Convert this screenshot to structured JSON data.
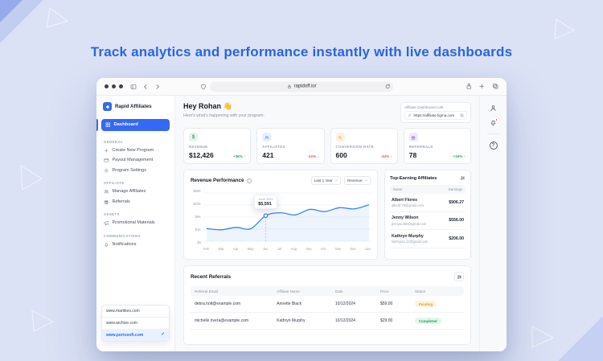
{
  "background": {
    "headline": "Track analytics and performance instantly with live dashboards"
  },
  "browser": {
    "url": "rapidoff.io/"
  },
  "sidebar": {
    "brand": "Rapid Affiliates",
    "active": "Dashboard",
    "sections": [
      {
        "label": "GENERAL",
        "items": [
          {
            "label": "Create New Program",
            "icon": "plus-icon"
          },
          {
            "label": "Payout Management",
            "icon": "credit-card-icon"
          },
          {
            "label": "Program Settings",
            "icon": "gear-icon"
          }
        ]
      },
      {
        "label": "AFFILIATE",
        "items": [
          {
            "label": "Manage Affiliates",
            "icon": "users-icon"
          },
          {
            "label": "Referrals",
            "icon": "gift-icon"
          }
        ]
      },
      {
        "label": "ASSETS",
        "items": [
          {
            "label": "Promotional Materials",
            "icon": "megaphone-icon"
          }
        ]
      },
      {
        "label": "COMMUNICATIONS",
        "items": [
          {
            "label": "Notifications",
            "icon": "bell-icon"
          }
        ]
      }
    ],
    "domains": {
      "options": [
        "www.martikes.com",
        "www.archive.com",
        "www.poriosoft.com"
      ],
      "selected_index": 2
    }
  },
  "header": {
    "greeting": "Hey Rohan 👋",
    "subtitle": "Here's what's happening with your program.",
    "link_card": {
      "label": "Affiliate Dashboard Link",
      "url": "https://affiliate.figma.com"
    }
  },
  "stats": [
    {
      "label": "REVENUE",
      "value": "$12,426",
      "delta": "+36%",
      "arrow": "↑",
      "trend": "up",
      "icon": "dollar-icon",
      "accent": "#27a567"
    },
    {
      "label": "AFFILIATES",
      "value": "421",
      "delta": "-14%",
      "arrow": "↓",
      "trend": "down",
      "icon": "users-icon",
      "accent": "#3b77f2"
    },
    {
      "label": "CONVERSION RATE",
      "value": "600",
      "delta": "-34%",
      "arrow": "↓",
      "trend": "down",
      "icon": "percent-icon",
      "accent": "#ef9834"
    },
    {
      "label": "REFERRALS",
      "value": "78",
      "delta": "+16%",
      "arrow": "↑",
      "trend": "up",
      "icon": "gift-icon",
      "accent": "#8a5cf0"
    }
  ],
  "chart": {
    "type": "area",
    "title": "Revenue Performance",
    "range_filter": "Last 1 Year",
    "metric_filter": "Revenue",
    "y_ticks": [
      "$50K",
      "$10K",
      "$5K",
      "$1K",
      "$0"
    ],
    "y_tick_values": [
      0,
      1000,
      5000,
      10000,
      50000
    ],
    "months": [
      "Feb",
      "Mar",
      "Apr",
      "May",
      "Jun",
      "Jul",
      "Aug",
      "Sep",
      "Oct",
      "Nov",
      "Dec",
      "Jan"
    ],
    "values": [
      1200,
      950,
      1600,
      1150,
      5591,
      6800,
      5900,
      8200,
      7300,
      8900,
      8400,
      11000
    ],
    "highlight": {
      "index": 4,
      "label": "June 2024",
      "value": "$5,591"
    },
    "line_color": "#3b82f6"
  },
  "top_affiliates": {
    "title": "Top-Earning Affiliates",
    "columns": {
      "name": "Name",
      "earnings": "Earnings"
    },
    "rows": [
      {
        "name": "Albert Flores",
        "email": "albertf.78@gmail.com",
        "earnings": "$906.27"
      },
      {
        "name": "Jenny Wilson",
        "email": "jennyw.456@gmail.com",
        "earnings": "$556.00"
      },
      {
        "name": "Kathryn Murphy",
        "email": "kathrynm.12@gmail.com",
        "earnings": "$206.00"
      }
    ]
  },
  "referrals": {
    "title": "Recent Referrals",
    "columns": {
      "email": "Referral Email",
      "name": "Affiliate Name",
      "date": "Date",
      "price": "Price",
      "status": "Status"
    },
    "rows": [
      {
        "email": "debra.holt@example.com",
        "name": "Annette Black",
        "date": "10/12/2024",
        "price": "$59.00",
        "status": "Pending",
        "status_type": "pending"
      },
      {
        "email": "michelle.rivera@example.com",
        "name": "Kathryn Murphy",
        "date": "10/12/2024",
        "price": "$29.00",
        "status": "Completed",
        "status_type": "completed"
      }
    ]
  },
  "icons": {
    "info_glyph": "i",
    "help_glyph": "?",
    "check_glyph": "✓",
    "dollar_glyph": "$"
  }
}
